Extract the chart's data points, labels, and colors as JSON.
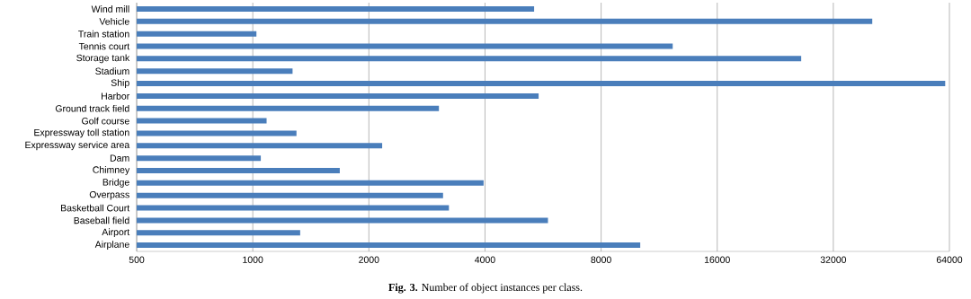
{
  "chart_data": {
    "type": "bar",
    "orientation": "horizontal",
    "log": "x",
    "grid": "x",
    "title": "**Fig. 3.** Number of object instances per class.",
    "categories": [
      "Wind mill",
      "Vehicle",
      "Train station",
      "Tennis court",
      "Storage tank",
      "Stadium",
      "Ship",
      "Harbor",
      "Ground track field",
      "Golf course",
      "Expressway toll station",
      "Expressway service area",
      "Dam",
      "Chimney",
      "Bridge",
      "Overpass",
      "Basketball Court",
      "Baseball field",
      "Airport",
      "Airplane"
    ],
    "values": [
      5363,
      40370,
      1022,
      12266,
      26414,
      1268,
      62400,
      5509,
      3038,
      1086,
      1298,
      2165,
      1049,
      1681,
      3967,
      3114,
      3225,
      5825,
      1327,
      10104
    ],
    "color": "#4a7ebb",
    "xlim": [
      500,
      64000
    ],
    "xticks": [
      500,
      1000,
      2000,
      4000,
      8000,
      16000,
      32000,
      64000
    ]
  }
}
